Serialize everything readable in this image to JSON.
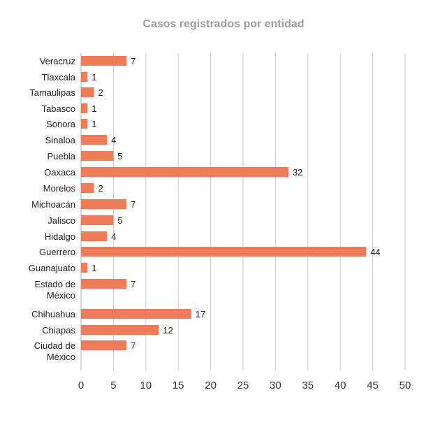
{
  "chart_data": {
    "type": "bar",
    "orientation": "horizontal",
    "title": "Casos registrados por entidad",
    "categories": [
      [
        "Veracruz"
      ],
      [
        "Tlaxcala"
      ],
      [
        "Tamaulipas"
      ],
      [
        "Tabasco"
      ],
      [
        "Sonora"
      ],
      [
        "Sinaloa"
      ],
      [
        "Puebla"
      ],
      [
        "Oaxaca"
      ],
      [
        "Morelos"
      ],
      [
        "Michoacán"
      ],
      [
        "Jalisco"
      ],
      [
        "Hidalgo"
      ],
      [
        "Guerrero"
      ],
      [
        "Guanajuato"
      ],
      [
        "Estado de",
        "México"
      ],
      [
        "Chihuahua"
      ],
      [
        "Chiapas"
      ],
      [
        "Ciudad de",
        "México"
      ]
    ],
    "values": [
      7,
      1,
      2,
      1,
      1,
      4,
      5,
      32,
      2,
      7,
      5,
      4,
      44,
      1,
      7,
      17,
      12,
      7
    ],
    "xlim": [
      0,
      50
    ],
    "xticks": [
      0,
      5,
      10,
      15,
      20,
      25,
      30,
      35,
      40,
      45,
      50
    ],
    "grid": "vertical",
    "bar_color": "#f07c57",
    "grid_color": "#c8c8c8"
  }
}
